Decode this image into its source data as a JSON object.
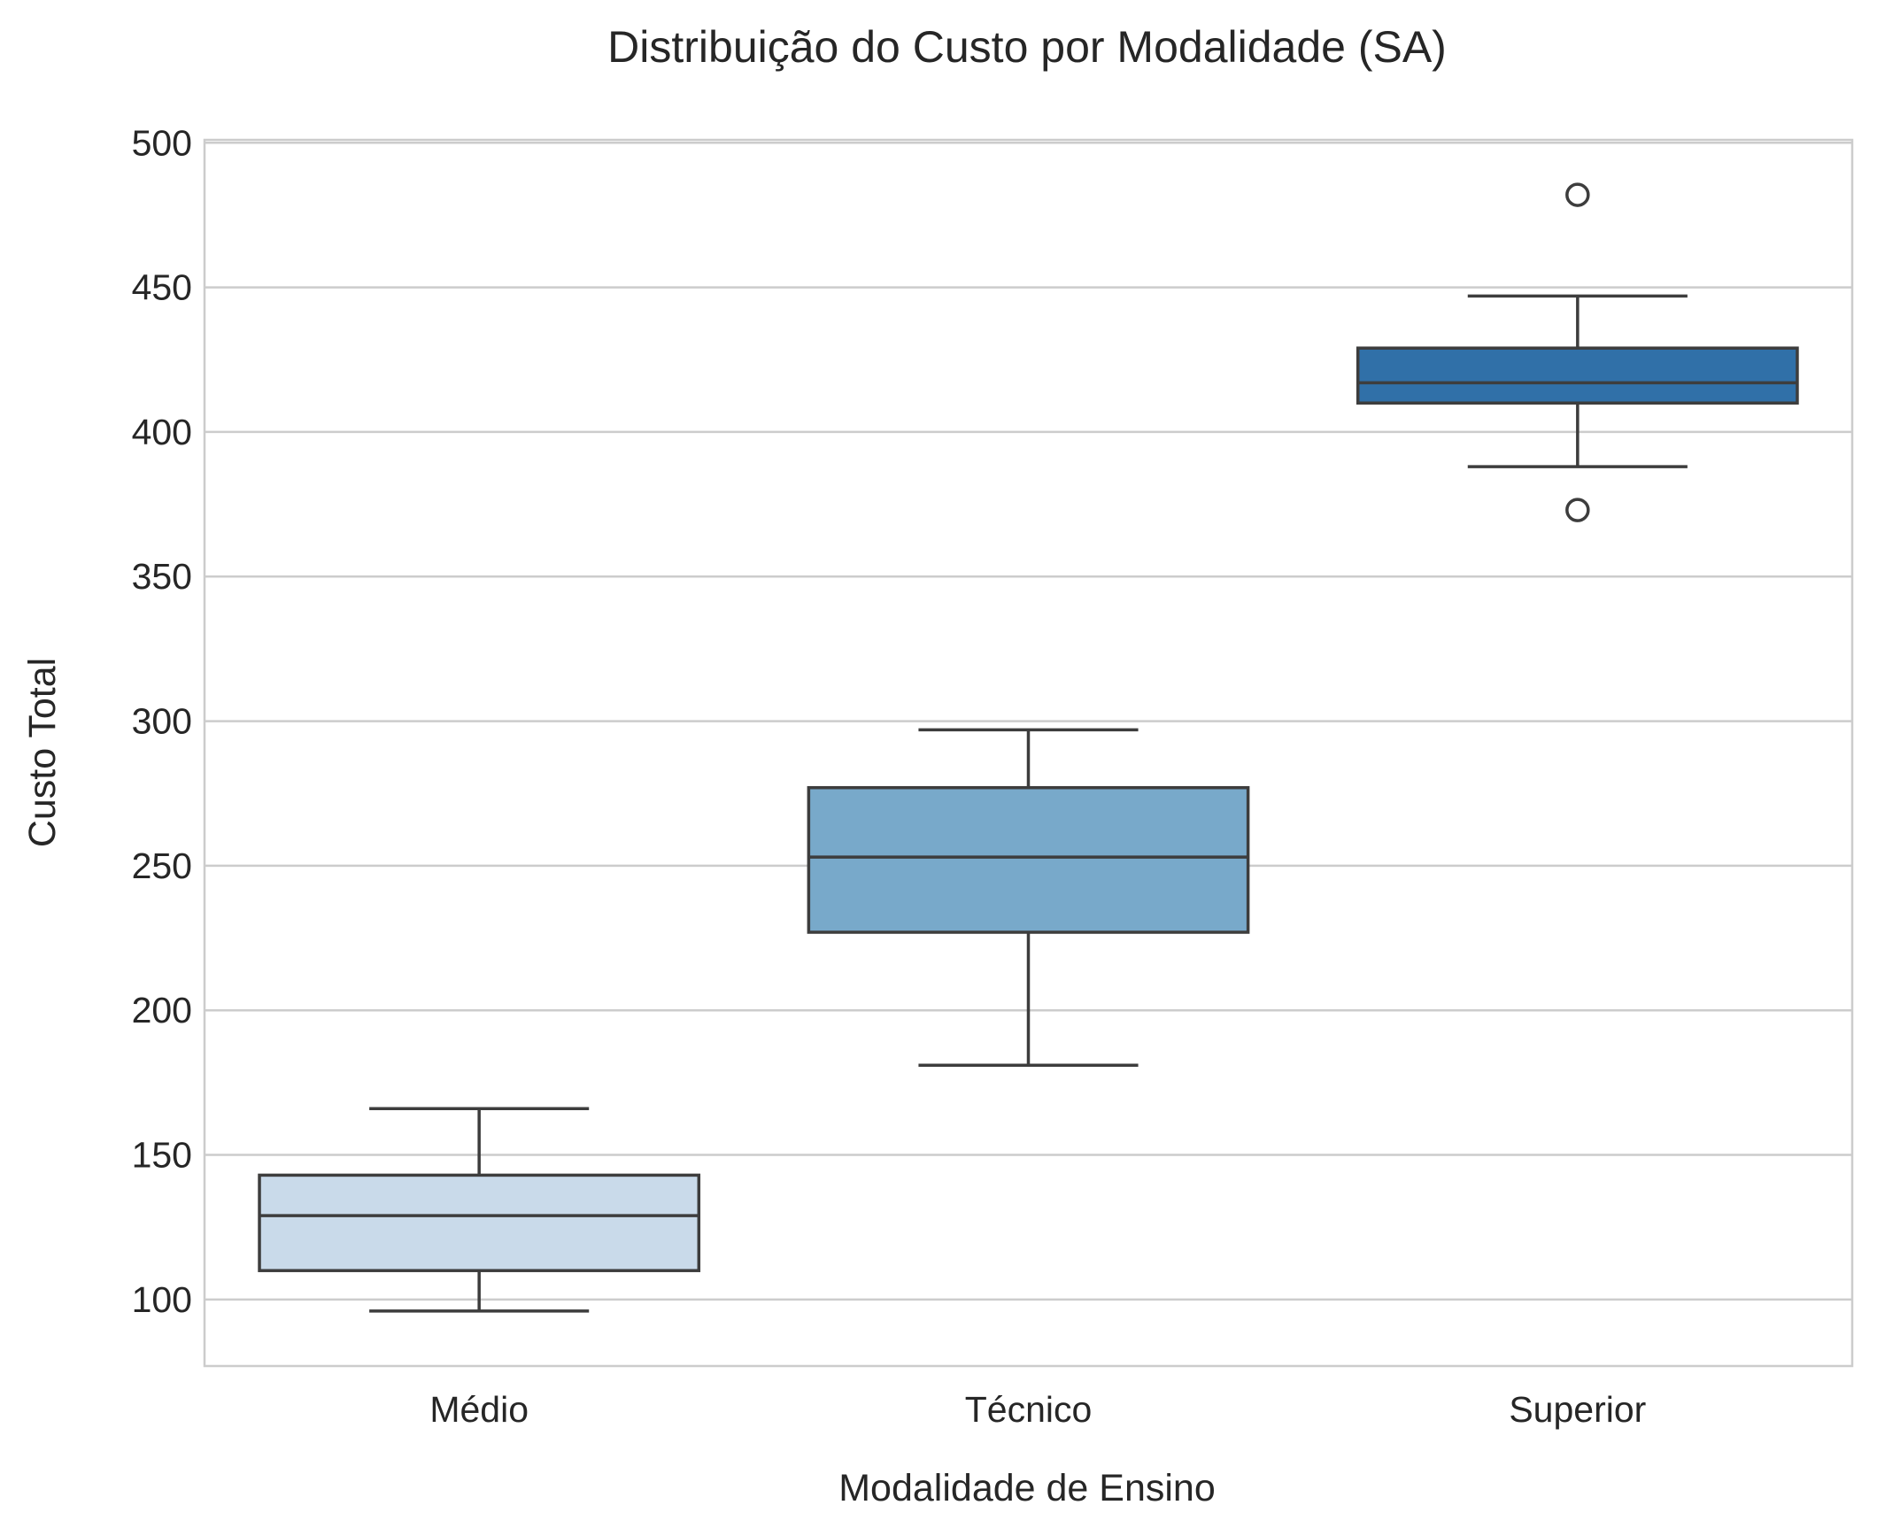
{
  "chart_data": {
    "type": "box",
    "title": "Distribuição do Custo por Modalidade (SA)",
    "xlabel": "Modalidade de Ensino",
    "ylabel": "Custo Total",
    "categories": [
      "Médio",
      "Técnico",
      "Superior"
    ],
    "colors": [
      "#c9daea",
      "#78a9ca",
      "#3070a8"
    ],
    "ylim": [
      77,
      501
    ],
    "yticks": [
      100,
      150,
      200,
      250,
      300,
      350,
      400,
      450,
      500
    ],
    "grid": true,
    "boxes": [
      {
        "category": "Médio",
        "whisker_low": 96,
        "q1": 110,
        "median": 129,
        "q3": 143,
        "whisker_high": 166,
        "outliers": []
      },
      {
        "category": "Técnico",
        "whisker_low": 181,
        "q1": 227,
        "median": 253,
        "q3": 277,
        "whisker_high": 297,
        "outliers": []
      },
      {
        "category": "Superior",
        "whisker_low": 388,
        "q1": 410,
        "median": 417,
        "q3": 429,
        "whisker_high": 447,
        "outliers": [
          373,
          482
        ]
      }
    ]
  }
}
